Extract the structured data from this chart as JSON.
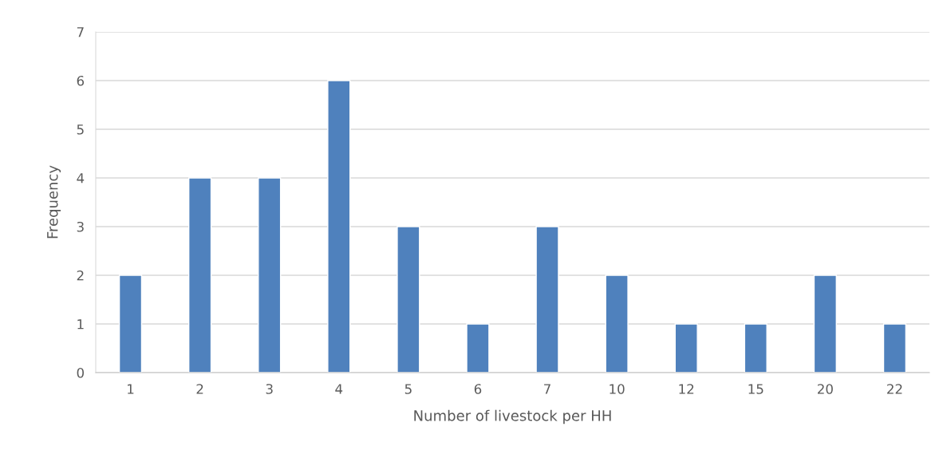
{
  "chart_data": {
    "type": "bar",
    "xlabel": "Number of livestock per HH",
    "ylabel": "Frequency",
    "categories": [
      "1",
      "2",
      "3",
      "4",
      "5",
      "6",
      "7",
      "10",
      "12",
      "15",
      "20",
      "22"
    ],
    "values": [
      2,
      4,
      4,
      6,
      3,
      1,
      3,
      2,
      1,
      1,
      2,
      1
    ],
    "color": "#4f81bd",
    "ylim": [
      0,
      7
    ],
    "yticks": [
      0,
      1,
      2,
      3,
      4,
      5,
      6,
      7
    ],
    "grid": "y"
  }
}
